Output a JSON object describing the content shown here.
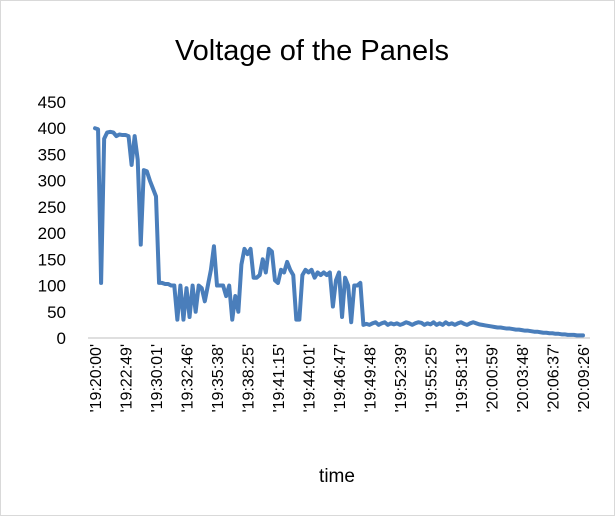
{
  "chart_data": {
    "type": "line",
    "title": "Voltage of the Panels",
    "x_label": "time",
    "categories": [
      "'19:20:00'",
      null,
      null,
      null,
      null,
      null,
      null,
      null,
      null,
      null,
      "'19:22:49'",
      null,
      null,
      null,
      null,
      null,
      null,
      null,
      null,
      null,
      "'19:30:01'",
      null,
      null,
      null,
      null,
      null,
      null,
      null,
      null,
      null,
      "'19:32:46'",
      null,
      null,
      null,
      null,
      null,
      null,
      null,
      null,
      null,
      "'19:35:38'",
      null,
      null,
      null,
      null,
      null,
      null,
      null,
      null,
      null,
      "'19:38:25'",
      null,
      null,
      null,
      null,
      null,
      null,
      null,
      null,
      null,
      "'19:41:15'",
      null,
      null,
      null,
      null,
      null,
      null,
      null,
      null,
      null,
      "'19:44:01'",
      null,
      null,
      null,
      null,
      null,
      null,
      null,
      null,
      null,
      "'19:46:47'",
      null,
      null,
      null,
      null,
      null,
      null,
      null,
      null,
      null,
      "'19:49:48'",
      null,
      null,
      null,
      null,
      null,
      null,
      null,
      null,
      null,
      "'19:52:39'",
      null,
      null,
      null,
      null,
      null,
      null,
      null,
      null,
      null,
      "'19:55:25'",
      null,
      null,
      null,
      null,
      null,
      null,
      null,
      null,
      null,
      "'19:58:13'",
      null,
      null,
      null,
      null,
      null,
      null,
      null,
      null,
      null,
      "'20:00:59'",
      null,
      null,
      null,
      null,
      null,
      null,
      null,
      null,
      null,
      "'20:03:48'",
      null,
      null,
      null,
      null,
      null,
      null,
      null,
      null,
      null,
      "'20:06:37'",
      null,
      null,
      null,
      null,
      null,
      null,
      null,
      null,
      null,
      "'20:09:26'"
    ],
    "series": [
      {
        "name": "Voltage",
        "color": "#4a7ebb",
        "values": [
          400,
          398,
          105,
          380,
          392,
          393,
          392,
          385,
          388,
          387,
          387,
          385,
          330,
          385,
          340,
          178,
          320,
          318,
          300,
          285,
          270,
          105,
          105,
          103,
          103,
          100,
          100,
          35,
          100,
          35,
          95,
          40,
          100,
          50,
          100,
          95,
          70,
          100,
          130,
          175,
          100,
          100,
          100,
          80,
          100,
          35,
          80,
          50,
          140,
          170,
          160,
          170,
          115,
          115,
          120,
          150,
          125,
          170,
          165,
          110,
          105,
          130,
          125,
          145,
          130,
          120,
          35,
          35,
          120,
          130,
          125,
          130,
          115,
          125,
          120,
          125,
          120,
          125,
          60,
          110,
          125,
          40,
          115,
          100,
          30,
          100,
          100,
          105,
          25,
          27,
          25,
          28,
          30,
          25,
          28,
          30,
          25,
          28,
          26,
          28,
          25,
          27,
          30,
          28,
          25,
          28,
          30,
          29,
          25,
          28,
          26,
          30,
          25,
          28,
          25,
          30,
          26,
          28,
          25,
          28,
          30,
          27,
          25,
          28,
          30,
          28,
          26,
          25,
          24,
          23,
          22,
          21,
          20,
          20,
          19,
          18,
          18,
          17,
          16,
          16,
          15,
          14,
          14,
          13,
          12,
          12,
          11,
          10,
          10,
          9,
          9,
          8,
          8,
          7,
          7,
          6,
          6,
          6,
          5,
          5,
          5
        ]
      }
    ],
    "ylim": [
      0,
      450
    ],
    "yticks": [
      0,
      50,
      100,
      150,
      200,
      250,
      300,
      350,
      400,
      450
    ],
    "grid": false,
    "legend": false
  }
}
